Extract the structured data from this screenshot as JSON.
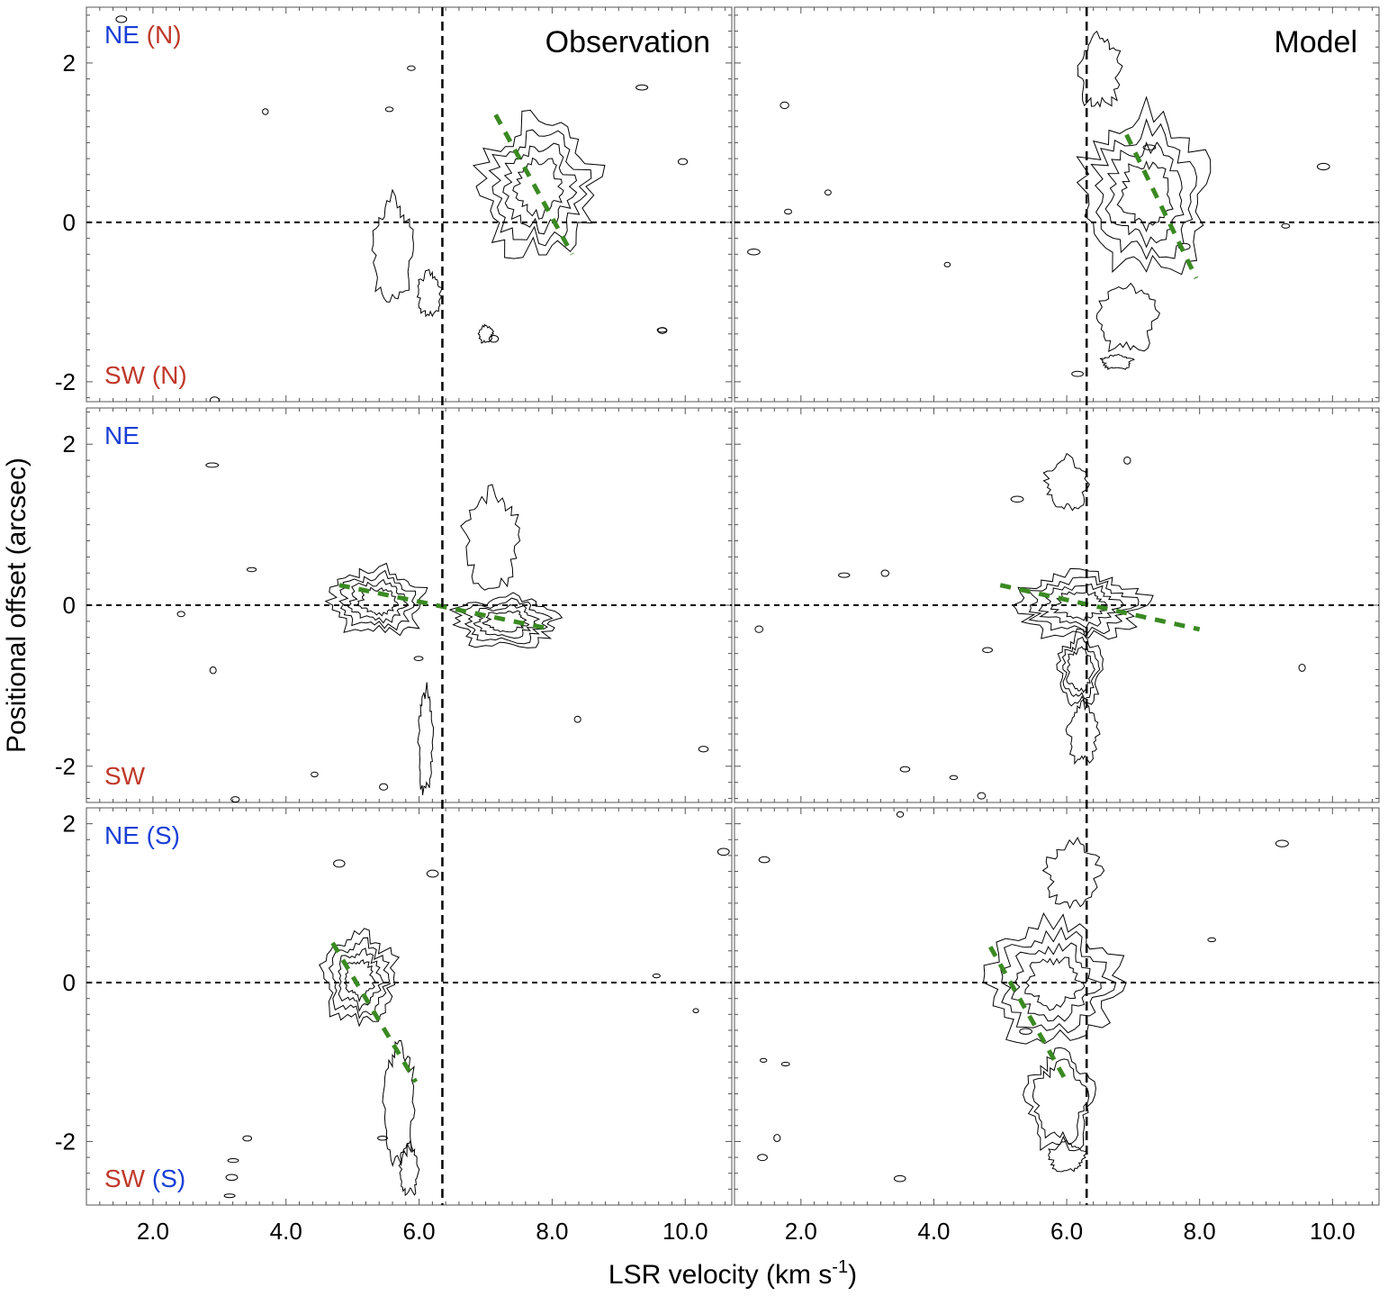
{
  "chart_data": {
    "type": "contour",
    "figure": {
      "xlabel": "LSR velocity (km s",
      "xlabel_sup": "-1",
      "xlabel_end": ")",
      "ylabel": "Positional offset (arcsec)",
      "xlim": [
        1.0,
        10.7
      ],
      "x_ticks": [
        2.0,
        4.0,
        6.0,
        8.0,
        10.0
      ],
      "x_tick_labels": [
        "2.0",
        "4.0",
        "6.0",
        "8.0",
        "10.0"
      ]
    },
    "rows": [
      {
        "ylim": [
          -2.25,
          2.7
        ],
        "y_ticks": [
          -2,
          0,
          2
        ],
        "y_tick_labels": [
          "-2",
          "0",
          "2"
        ],
        "label_top": [
          {
            "text": "NE",
            "color": "#1a3fd6"
          },
          {
            "text": " (N)",
            "color": "#c0392b"
          }
        ],
        "label_bottom": [
          {
            "text": "SW",
            "color": "#c0392b"
          },
          {
            "text": " (N)",
            "color": "#c0392b"
          }
        ]
      },
      {
        "ylim": [
          -2.45,
          2.45
        ],
        "y_ticks": [
          -2,
          0,
          2
        ],
        "y_tick_labels": [
          "-2",
          "0",
          "2"
        ],
        "label_top": [
          {
            "text": "NE",
            "color": "#1a3fd6"
          }
        ],
        "label_bottom": [
          {
            "text": "SW",
            "color": "#c0392b"
          }
        ]
      },
      {
        "ylim": [
          -2.8,
          2.2
        ],
        "y_ticks": [
          -2,
          0,
          2
        ],
        "y_tick_labels": [
          "-2",
          "0",
          "2"
        ],
        "label_top": [
          {
            "text": "NE",
            "color": "#1a3fd6"
          },
          {
            "text": " (S)",
            "color": "#1a3fd6"
          }
        ],
        "label_bottom": [
          {
            "text": "SW",
            "color": "#c0392b"
          },
          {
            "text": " (S)",
            "color": "#1a3fd6"
          }
        ]
      }
    ],
    "panels": [
      {
        "id": "observation-top",
        "row": 0,
        "col": 0,
        "title": "Observation",
        "systemic_velocity": 6.35,
        "zero_offset": 0,
        "velocity_gradient": [
          [
            7.15,
            1.35
          ],
          [
            8.3,
            -0.4
          ]
        ],
        "contour_blobs": [
          {
            "v": 7.8,
            "p": 0.45,
            "sv": 0.95,
            "sp": 0.95,
            "levels": 4
          },
          {
            "v": 5.6,
            "p": -0.35,
            "sv": 0.35,
            "sp": 0.7,
            "levels": 1
          },
          {
            "v": 6.15,
            "p": -0.9,
            "sv": 0.2,
            "sp": 0.3,
            "levels": 1
          },
          {
            "v": 7.0,
            "p": -1.4,
            "sv": 0.12,
            "sp": 0.12,
            "levels": 1
          }
        ]
      },
      {
        "id": "model-top",
        "row": 0,
        "col": 1,
        "title": "Model",
        "systemic_velocity": 6.3,
        "zero_offset": 0,
        "velocity_gradient": [
          [
            6.9,
            1.1
          ],
          [
            7.95,
            -0.7
          ]
        ],
        "contour_blobs": [
          {
            "v": 7.2,
            "p": 0.35,
            "sv": 1.05,
            "sp": 1.15,
            "levels": 4
          },
          {
            "v": 6.5,
            "p": 1.9,
            "sv": 0.35,
            "sp": 0.5,
            "levels": 1
          },
          {
            "v": 6.9,
            "p": -1.2,
            "sv": 0.5,
            "sp": 0.45,
            "levels": 1
          },
          {
            "v": 6.75,
            "p": -1.75,
            "sv": 0.25,
            "sp": 0.1,
            "levels": 1
          }
        ]
      },
      {
        "id": "observation-middle",
        "row": 1,
        "col": 0,
        "title": "",
        "systemic_velocity": 6.35,
        "zero_offset": 0,
        "velocity_gradient": [
          [
            4.8,
            0.25
          ],
          [
            8.0,
            -0.3
          ]
        ],
        "contour_blobs": [
          {
            "v": 5.4,
            "p": 0.05,
            "sv": 0.8,
            "sp": 0.45,
            "levels": 4
          },
          {
            "v": 7.3,
            "p": -0.2,
            "sv": 0.85,
            "sp": 0.35,
            "levels": 4
          },
          {
            "v": 7.1,
            "p": 0.8,
            "sv": 0.45,
            "sp": 0.65,
            "levels": 1
          },
          {
            "v": 6.1,
            "p": -1.7,
            "sv": 0.12,
            "sp": 0.7,
            "levels": 1
          }
        ]
      },
      {
        "id": "model-middle",
        "row": 1,
        "col": 1,
        "title": "",
        "systemic_velocity": 6.3,
        "zero_offset": 0,
        "velocity_gradient": [
          [
            5.0,
            0.25
          ],
          [
            8.0,
            -0.3
          ]
        ],
        "contour_blobs": [
          {
            "v": 6.2,
            "p": 0.0,
            "sv": 1.1,
            "sp": 0.45,
            "levels": 4
          },
          {
            "v": 6.2,
            "p": -0.8,
            "sv": 0.35,
            "sp": 0.5,
            "levels": 3
          },
          {
            "v": 6.25,
            "p": -1.6,
            "sv": 0.25,
            "sp": 0.4,
            "levels": 1
          },
          {
            "v": 6.0,
            "p": 1.5,
            "sv": 0.35,
            "sp": 0.35,
            "levels": 1
          }
        ]
      },
      {
        "id": "observation-bottom",
        "row": 2,
        "col": 0,
        "title": "",
        "systemic_velocity": 6.35,
        "zero_offset": 0,
        "velocity_gradient": [
          [
            4.7,
            0.5
          ],
          [
            5.95,
            -1.25
          ]
        ],
        "contour_blobs": [
          {
            "v": 5.1,
            "p": 0.05,
            "sv": 0.6,
            "sp": 0.65,
            "levels": 4
          },
          {
            "v": 5.7,
            "p": -1.5,
            "sv": 0.25,
            "sp": 0.85,
            "levels": 1
          },
          {
            "v": 5.85,
            "p": -2.35,
            "sv": 0.15,
            "sp": 0.35,
            "levels": 1
          }
        ]
      },
      {
        "id": "model-bottom",
        "row": 2,
        "col": 1,
        "title": "",
        "systemic_velocity": 6.3,
        "zero_offset": 0,
        "velocity_gradient": [
          [
            4.85,
            0.45
          ],
          [
            6.0,
            -1.25
          ]
        ],
        "contour_blobs": [
          {
            "v": 5.8,
            "p": 0.0,
            "sv": 1.1,
            "sp": 0.85,
            "levels": 4
          },
          {
            "v": 5.9,
            "p": -1.5,
            "sv": 0.55,
            "sp": 0.65,
            "levels": 2
          },
          {
            "v": 6.1,
            "p": 1.35,
            "sv": 0.45,
            "sp": 0.45,
            "levels": 1
          },
          {
            "v": 6.0,
            "p": -2.2,
            "sv": 0.3,
            "sp": 0.2,
            "levels": 1
          }
        ]
      }
    ],
    "gradient_color": "#3a8a22",
    "contour_color": "#000000"
  }
}
